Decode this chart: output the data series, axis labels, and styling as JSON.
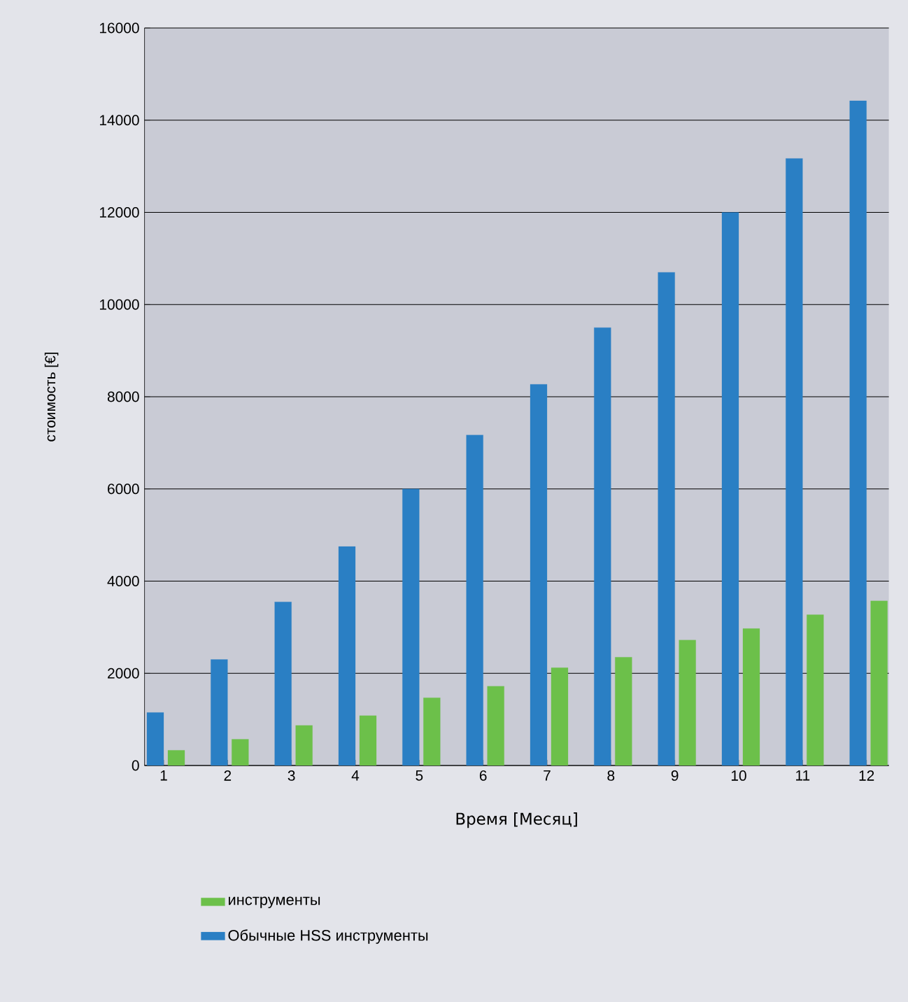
{
  "chart_data": {
    "type": "bar",
    "xlabel": "Время [Месяц]",
    "ylabel": "стоимость [€]",
    "categories": [
      "1",
      "2",
      "3",
      "4",
      "5",
      "6",
      "7",
      "8",
      "9",
      "10",
      "11",
      "12"
    ],
    "series": [
      {
        "name": "Обычные HSS инструменты",
        "color": "#2a7fc4",
        "values": [
          1150,
          2300,
          3550,
          4750,
          6000,
          7170,
          8270,
          9500,
          10700,
          12000,
          13170,
          14420
        ]
      },
      {
        "name": "инструменты",
        "color": "#6cc04a",
        "values": [
          330,
          570,
          870,
          1080,
          1470,
          1720,
          2120,
          2350,
          2720,
          2970,
          3270,
          3570
        ]
      }
    ],
    "ylim": [
      0,
      16000
    ],
    "yticks": [
      0,
      2000,
      4000,
      6000,
      8000,
      10000,
      12000,
      14000,
      16000
    ],
    "grid": "y",
    "legend": "bottom"
  }
}
